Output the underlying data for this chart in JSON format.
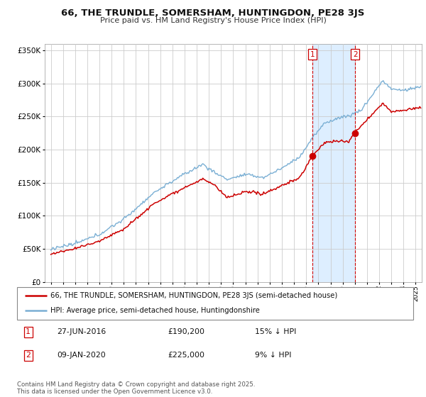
{
  "title": "66, THE TRUNDLE, SOMERSHAM, HUNTINGDON, PE28 3JS",
  "subtitle": "Price paid vs. HM Land Registry's House Price Index (HPI)",
  "legend_line1": "66, THE TRUNDLE, SOMERSHAM, HUNTINGDON, PE28 3JS (semi-detached house)",
  "legend_line2": "HPI: Average price, semi-detached house, Huntingdonshire",
  "transaction1_date": "27-JUN-2016",
  "transaction1_price": "£190,200",
  "transaction1_note": "15% ↓ HPI",
  "transaction2_date": "09-JAN-2020",
  "transaction2_price": "£225,000",
  "transaction2_note": "9% ↓ HPI",
  "t1_x": 2016.49,
  "t2_x": 2020.03,
  "t1_price": 190200,
  "t2_price": 225000,
  "ylim_min": 0,
  "ylim_max": 360000,
  "xlim_min": 1994.5,
  "xlim_max": 2025.5,
  "price_color": "#cc0000",
  "hpi_color": "#7aafd4",
  "shade_color": "#ddeeff",
  "vline_color": "#cc0000",
  "footer": "Contains HM Land Registry data © Crown copyright and database right 2025.\nThis data is licensed under the Open Government Licence v3.0.",
  "grid_color": "#cccccc",
  "hpi_anchors_t": [
    1995.0,
    1997.0,
    1999.0,
    2001.0,
    2003.5,
    2005.5,
    2007.5,
    2008.5,
    2009.5,
    2011.0,
    2012.5,
    2014.0,
    2015.5,
    2016.5,
    2017.5,
    2018.5,
    2019.5,
    2020.5,
    2021.5,
    2022.3,
    2023.0,
    2024.0,
    2025.3
  ],
  "hpi_anchors_v": [
    50000,
    57000,
    72000,
    95000,
    135000,
    158000,
    178000,
    165000,
    155000,
    162000,
    158000,
    172000,
    190000,
    218000,
    240000,
    248000,
    252000,
    260000,
    285000,
    305000,
    292000,
    290000,
    295000
  ],
  "price_anchors_t": [
    1995.0,
    1997.0,
    1999.0,
    2001.0,
    2003.5,
    2005.5,
    2007.5,
    2008.5,
    2009.5,
    2011.0,
    2012.5,
    2014.0,
    2015.5,
    2016.49,
    2017.5,
    2018.5,
    2019.5,
    2020.03,
    2021.5,
    2022.3,
    2023.0,
    2024.0,
    2025.3
  ],
  "price_anchors_v": [
    42000,
    50000,
    62000,
    80000,
    118000,
    138000,
    155000,
    145000,
    127000,
    135000,
    133000,
    145000,
    158000,
    190200,
    210000,
    213000,
    212000,
    225000,
    255000,
    270000,
    257000,
    260000,
    263000
  ]
}
